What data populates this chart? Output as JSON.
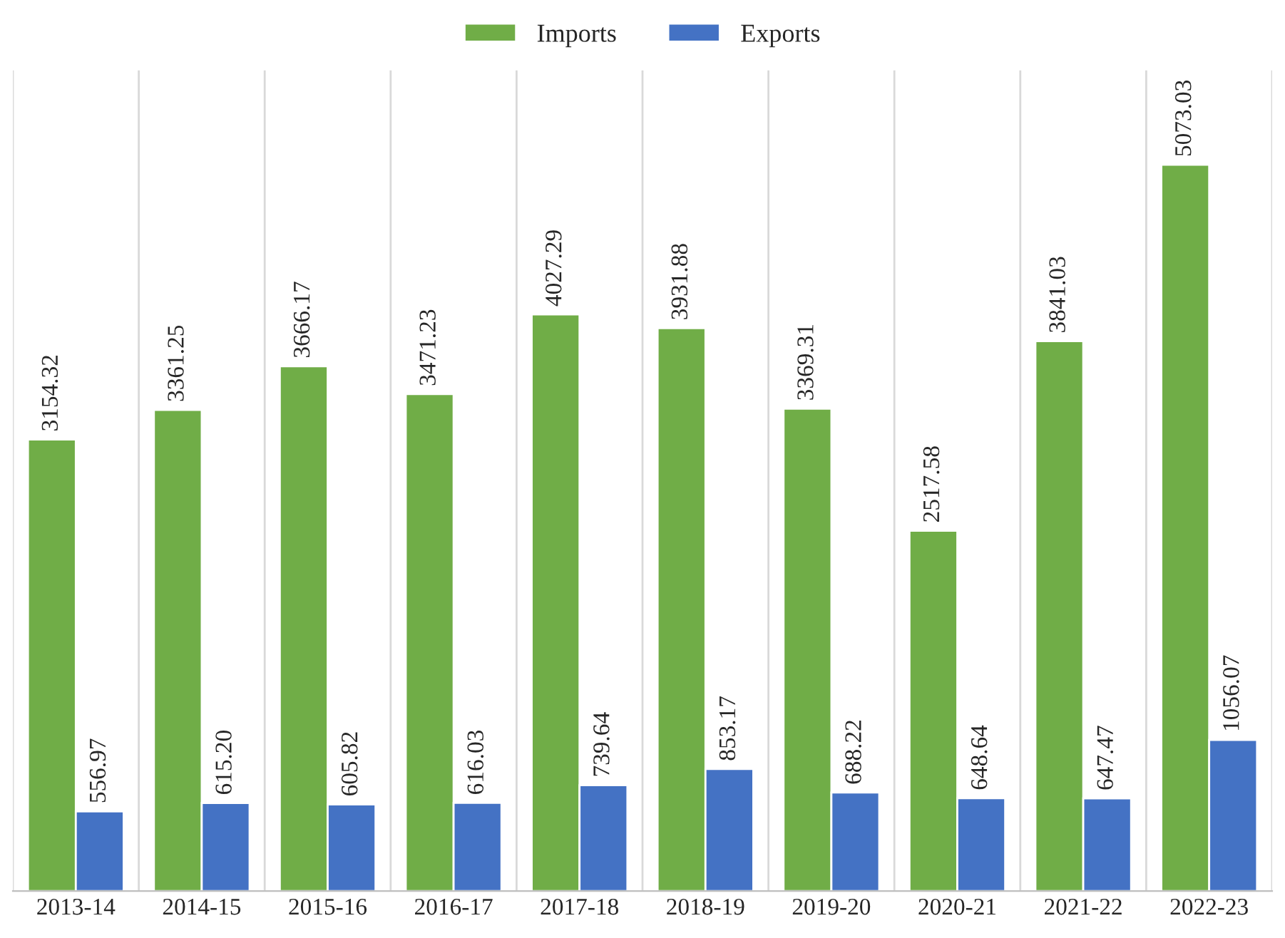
{
  "chart_data": {
    "type": "bar",
    "categories": [
      "2013-14",
      "2014-15",
      "2015-16",
      "2016-17",
      "2017-18",
      "2018-19",
      "2019-20",
      "2020-21",
      "2021-22",
      "2022-23"
    ],
    "series": [
      {
        "name": "Imports",
        "color": "#70ad47",
        "values": [
          3154.32,
          3361.25,
          3666.17,
          3471.23,
          4027.29,
          3931.88,
          3369.31,
          2517.58,
          3841.03,
          5073.03
        ],
        "value_labels": [
          "3154.32",
          "3361.25",
          "3666.17",
          "3471.23",
          "4027.29",
          "3931.88",
          "3369.31",
          "2517.58",
          "3841.03",
          "5073.03"
        ]
      },
      {
        "name": "Exports",
        "color": "#4472c4",
        "values": [
          556.97,
          615.2,
          605.82,
          616.03,
          739.64,
          853.17,
          688.22,
          648.64,
          647.47,
          1056.07
        ],
        "value_labels": [
          "556.97",
          "615.20",
          "605.82",
          "616.03",
          "739.64",
          "853.17",
          "688.22",
          "648.64",
          "647.47",
          "1056.07"
        ]
      }
    ],
    "grid": "x",
    "legend": "top"
  }
}
